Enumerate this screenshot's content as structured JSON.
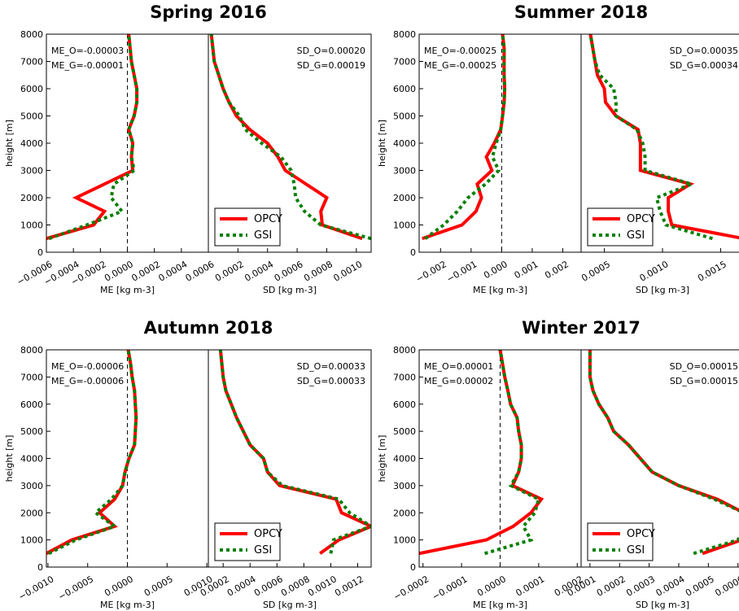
{
  "chart_data": [
    {
      "type": "line",
      "title": "Spring 2016",
      "subplots": [
        {
          "xlabel": "ME [kg m-3]",
          "ylabel": "height [m]",
          "xlim": [
            -0.0006,
            0.0006
          ],
          "xticks": [
            {
              "value": -0.0006,
              "label": "−0.0006"
            },
            {
              "value": -0.0004,
              "label": "−0.0004"
            },
            {
              "value": -0.0002,
              "label": "−0.0002"
            },
            {
              "value": 0,
              "label": "0.0000"
            },
            {
              "value": 0.0002,
              "label": "0.0002"
            },
            {
              "value": 0.0004,
              "label": "0.0004"
            },
            {
              "value": 0.0006,
              "label": "0.0006"
            }
          ],
          "ylim": [
            0,
            8000
          ],
          "yticks": [
            0,
            1000,
            2000,
            3000,
            4000,
            5000,
            6000,
            7000,
            8000
          ],
          "zero_line": 0,
          "annotations": [
            "ME_O=-0.00003",
            "ME_G=-0.00001"
          ],
          "y": [
            500,
            1000,
            1500,
            2000,
            2500,
            3000,
            3500,
            4000,
            4500,
            5000,
            5500,
            6000,
            6500,
            7000,
            7500,
            8000
          ],
          "series": [
            {
              "name": "OPCY",
              "color": "#ff0000",
              "linestyle": "solid",
              "values": [
                -0.0006,
                -0.00025,
                -0.00017,
                -0.00038,
                -0.00017,
                4e-05,
                3e-05,
                4e-05,
                1e-05,
                5e-05,
                7e-05,
                7e-05,
                5e-05,
                3e-05,
                2e-05,
                1e-05
              ]
            },
            {
              "name": "GSI",
              "color": "#007f00",
              "linestyle": "dotted",
              "values": [
                -0.00058,
                -0.0003,
                -4e-05,
                -0.00012,
                -0.0001,
                5e-05,
                3e-05,
                4e-05,
                1e-05,
                5e-05,
                7e-05,
                7e-05,
                5e-05,
                3e-05,
                2e-05,
                1e-05
              ]
            }
          ]
        },
        {
          "xlabel": "SD [kg m-3]",
          "xlim": [
            0,
            0.0011
          ],
          "xticks": [
            {
              "value": 0.0002,
              "label": "0.0002"
            },
            {
              "value": 0.0004,
              "label": "0.0004"
            },
            {
              "value": 0.0006,
              "label": "0.0006"
            },
            {
              "value": 0.0008,
              "label": "0.0008"
            },
            {
              "value": 0.001,
              "label": "0.0010"
            }
          ],
          "ylim": [
            0,
            8000
          ],
          "annotations": [
            "SD_O=0.00020",
            "SD_G=0.00019"
          ],
          "legend": "lower left",
          "y": [
            500,
            1000,
            1500,
            2000,
            2500,
            3000,
            3500,
            4000,
            4500,
            5000,
            5500,
            6000,
            6500,
            7000,
            7500,
            8000
          ],
          "series": [
            {
              "name": "OPCY",
              "color": "#ff0000",
              "linestyle": "solid",
              "values": [
                0.00104,
                0.00077,
                0.00076,
                0.0008,
                0.00066,
                0.00052,
                0.00047,
                0.0004,
                0.00028,
                0.00019,
                0.00014,
                0.0001,
                7e-05,
                4e-05,
                3e-05,
                2e-05
              ]
            },
            {
              "name": "GSI",
              "color": "#007f00",
              "linestyle": "dotted",
              "values": [
                0.0011,
                0.00076,
                0.00065,
                0.00059,
                0.00058,
                0.00056,
                0.00049,
                0.00036,
                0.00025,
                0.00021,
                0.00014,
                0.0001,
                7e-05,
                4e-05,
                3e-05,
                2e-05
              ]
            }
          ]
        }
      ]
    },
    {
      "type": "line",
      "title": "Summer 2018",
      "subplots": [
        {
          "xlabel": "ME [kg m-3]",
          "ylabel": "height [m]",
          "xlim": [
            -0.0027,
            0.0026
          ],
          "xticks": [
            {
              "value": -0.002,
              "label": "−0.002"
            },
            {
              "value": -0.001,
              "label": "−0.001"
            },
            {
              "value": 0,
              "label": "0.000"
            },
            {
              "value": 0.001,
              "label": "0.001"
            },
            {
              "value": 0.002,
              "label": "0.002"
            }
          ],
          "ylim": [
            0,
            8000
          ],
          "yticks": [
            0,
            1000,
            2000,
            3000,
            4000,
            5000,
            6000,
            7000,
            8000
          ],
          "zero_line": 0,
          "annotations": [
            "ME_O=-0.00025",
            "ME_G=-0.00025"
          ],
          "y": [
            500,
            1000,
            1500,
            2000,
            2500,
            3000,
            3500,
            4000,
            4500,
            5000,
            5500,
            6000,
            6500,
            7000,
            7500,
            8000
          ],
          "series": [
            {
              "name": "OPCY",
              "color": "#ff0000",
              "linestyle": "solid",
              "values": [
                -0.0026,
                -0.0013,
                -0.00084,
                -0.00066,
                -0.0008,
                -0.00032,
                -0.0005,
                -0.00024,
                -3e-05,
                3e-05,
                8e-05,
                0.0001,
                8e-05,
                8e-05,
                8e-05,
                3e-05
              ]
            },
            {
              "name": "GSI",
              "color": "#007f00",
              "linestyle": "dotted",
              "values": [
                -0.0025,
                -0.0019,
                -0.00145,
                -0.0011,
                -0.00053,
                -0.0001,
                -0.0003,
                -0.00018,
                -3e-05,
                3e-05,
                8e-05,
                0.0001,
                8e-05,
                8e-05,
                8e-05,
                3e-05
              ]
            }
          ]
        },
        {
          "xlabel": "SD [kg m-3]",
          "xlim": [
            0.0003,
            0.0017
          ],
          "xticks": [
            {
              "value": 0.0005,
              "label": "0.0005"
            },
            {
              "value": 0.001,
              "label": "0.0010"
            },
            {
              "value": 0.0015,
              "label": "0.0015"
            }
          ],
          "ylim": [
            0,
            8000
          ],
          "annotations": [
            "SD_O=0.00035",
            "SD_G=0.00034"
          ],
          "legend": "lower left",
          "y": [
            500,
            1000,
            1500,
            2000,
            2500,
            3000,
            3500,
            4000,
            4500,
            5000,
            5500,
            6000,
            6500,
            7000,
            7500,
            8000
          ],
          "series": [
            {
              "name": "OPCY",
              "color": "#ff0000",
              "linestyle": "solid",
              "values": [
                0.0017,
                0.00108,
                0.00105,
                0.00105,
                0.00124,
                0.00081,
                0.00081,
                0.00081,
                0.00079,
                0.0006,
                0.00051,
                0.0005,
                0.00044,
                0.00042,
                0.0004,
                0.00038
              ]
            },
            {
              "name": "GSI",
              "color": "#007f00",
              "linestyle": "dotted",
              "values": [
                0.00143,
                0.00103,
                0.00098,
                0.00095,
                0.00125,
                0.00085,
                0.00085,
                0.00083,
                0.00078,
                0.0006,
                0.0006,
                0.00058,
                0.00046,
                0.00042,
                0.0004,
                0.00038
              ]
            }
          ]
        }
      ]
    },
    {
      "type": "line",
      "title": "Autumn 2018",
      "subplots": [
        {
          "xlabel": "ME [kg m-3]",
          "ylabel": "height [m]",
          "xlim": [
            -0.00102,
            0.00102
          ],
          "xticks": [
            {
              "value": -0.001,
              "label": "−0.0010"
            },
            {
              "value": -0.0005,
              "label": "−0.0005"
            },
            {
              "value": 0,
              "label": "0.0000"
            },
            {
              "value": 0.0005,
              "label": "0.0005"
            },
            {
              "value": 0.001,
              "label": "0.0010"
            }
          ],
          "ylim": [
            0,
            8000
          ],
          "yticks": [
            0,
            1000,
            2000,
            3000,
            4000,
            5000,
            6000,
            7000,
            8000
          ],
          "zero_line": 0,
          "annotations": [
            "ME_O=-0.00006",
            "ME_G=-0.00006"
          ],
          "y": [
            500,
            1000,
            1500,
            2000,
            2500,
            3000,
            3500,
            4000,
            4500,
            5000,
            5500,
            6000,
            6500,
            7000,
            7500,
            8000
          ],
          "series": [
            {
              "name": "OPCY",
              "color": "#ff0000",
              "linestyle": "solid",
              "values": [
                -0.00102,
                -0.0007,
                -0.00016,
                -0.00035,
                -0.00016,
                -6e-05,
                -3e-05,
                2e-05,
                9e-05,
                0.0001,
                0.00011,
                0.0001,
                9e-05,
                6e-05,
                4e-05,
                1e-05
              ]
            },
            {
              "name": "GSI",
              "color": "#007f00",
              "linestyle": "dotted",
              "values": [
                -0.00099,
                -0.00065,
                -0.00016,
                -0.0004,
                -0.0002,
                -6e-05,
                -3e-05,
                2e-05,
                9e-05,
                0.0001,
                0.00011,
                0.0001,
                9e-05,
                6e-05,
                4e-05,
                1e-05
              ]
            }
          ]
        },
        {
          "xlabel": "SD [kg m-3]",
          "xlim": [
            9e-05,
            0.0013
          ],
          "xticks": [
            {
              "value": 0.0002,
              "label": "0.0002"
            },
            {
              "value": 0.0004,
              "label": "0.0004"
            },
            {
              "value": 0.0006,
              "label": "0.0006"
            },
            {
              "value": 0.0008,
              "label": "0.0008"
            },
            {
              "value": 0.001,
              "label": "0.0010"
            },
            {
              "value": 0.0012,
              "label": "0.0012"
            }
          ],
          "ylim": [
            0,
            8000
          ],
          "annotations": [
            "SD_O=0.00033",
            "SD_G=0.00033"
          ],
          "legend": "lower left",
          "y": [
            500,
            1000,
            1500,
            2000,
            2500,
            3000,
            3500,
            4000,
            4500,
            5000,
            5500,
            6000,
            6500,
            7000,
            7500,
            8000
          ],
          "series": [
            {
              "name": "OPCY",
              "color": "#ff0000",
              "linestyle": "solid",
              "values": [
                0.00092,
                0.00106,
                0.0013,
                0.00108,
                0.00104,
                0.00062,
                0.00053,
                0.0005,
                0.0004,
                0.00035,
                0.0003,
                0.00026,
                0.00022,
                0.0002,
                0.00019,
                0.00018
              ]
            },
            {
              "name": "GSI",
              "color": "#007f00",
              "linestyle": "dotted",
              "values": [
                0.001,
                0.00102,
                0.0013,
                0.00114,
                0.00106,
                0.00064,
                0.00053,
                0.0005,
                0.0004,
                0.00035,
                0.0003,
                0.00026,
                0.00022,
                0.0002,
                0.00019,
                0.00018
              ]
            }
          ]
        }
      ]
    },
    {
      "type": "line",
      "title": "Winter 2017",
      "subplots": [
        {
          "xlabel": "ME [kg m-3]",
          "ylabel": "height [m]",
          "xlim": [
            -0.00021,
            0.00021
          ],
          "xticks": [
            {
              "value": -0.0002,
              "label": "−0.0002"
            },
            {
              "value": -0.0001,
              "label": "−0.0001"
            },
            {
              "value": 0,
              "label": "0.0000"
            },
            {
              "value": 0.0001,
              "label": "0.0001"
            },
            {
              "value": 0.0002,
              "label": "0.0002"
            }
          ],
          "ylim": [
            0,
            8000
          ],
          "yticks": [
            0,
            1000,
            2000,
            3000,
            4000,
            5000,
            6000,
            7000,
            8000
          ],
          "zero_line": 0,
          "annotations": [
            "ME_O=0.00001",
            "ME_G=0.00002"
          ],
          "y": [
            500,
            1000,
            1500,
            2000,
            2500,
            3000,
            3500,
            4000,
            4500,
            5000,
            5500,
            6000,
            6500,
            7000,
            7500,
            8000
          ],
          "series": [
            {
              "name": "OPCY",
              "color": "#ff0000",
              "linestyle": "solid",
              "values": [
                -0.00021,
                -3.6e-05,
                3.4e-05,
                8e-05,
                0.000107,
                3.2e-05,
                4.8e-05,
                5.5e-05,
                5.5e-05,
                4.8e-05,
                4.4e-05,
                2.7e-05,
                2e-05,
                1.2e-05,
                6e-06,
                0
              ]
            },
            {
              "name": "GSI",
              "color": "#007f00",
              "linestyle": "dotted",
              "values": [
                -4e-05,
                8e-05,
                6e-05,
                9e-05,
                0.0001,
                2.8e-05,
                4.8e-05,
                5.5e-05,
                5.5e-05,
                4.8e-05,
                4.4e-05,
                2.7e-05,
                2e-05,
                1.2e-05,
                6e-06,
                0
              ]
            }
          ]
        },
        {
          "xlabel": "SD [kg m-3]",
          "xlim": [
            7e-05,
            0.00062
          ],
          "xticks": [
            {
              "value": 0.0001,
              "label": "0.0001"
            },
            {
              "value": 0.0002,
              "label": "0.0002"
            },
            {
              "value": 0.0003,
              "label": "0.0003"
            },
            {
              "value": 0.0004,
              "label": "0.0004"
            },
            {
              "value": 0.0005,
              "label": "0.0005"
            },
            {
              "value": 0.0006,
              "label": "0.0006"
            }
          ],
          "ylim": [
            0,
            8000
          ],
          "annotations": [
            "SD_O=0.00015",
            "SD_G=0.00015"
          ],
          "legend": "lower left",
          "y": [
            500,
            1000,
            1500,
            2000,
            2500,
            3000,
            3500,
            4000,
            4500,
            5000,
            5500,
            6000,
            6500,
            7000,
            7500,
            8000
          ],
          "series": [
            {
              "name": "OPCY",
              "color": "#ff0000",
              "linestyle": "solid",
              "values": [
                0.00048,
                0.000613,
                0.00062,
                0.00062,
                0.00053,
                0.0004,
                0.00031,
                0.00027,
                0.00023,
                0.00018,
                0.00016,
                0.00013,
                0.00011,
                0.0001,
                0.0001,
                0.0001
              ]
            },
            {
              "name": "GSI",
              "color": "#007f00",
              "linestyle": "dotted",
              "values": [
                0.00045,
                0.0006,
                0.00062,
                0.00062,
                0.00052,
                0.0004,
                0.00031,
                0.00027,
                0.00023,
                0.00018,
                0.00016,
                0.00013,
                0.00011,
                0.0001,
                0.0001,
                0.0001
              ]
            }
          ]
        }
      ]
    }
  ]
}
